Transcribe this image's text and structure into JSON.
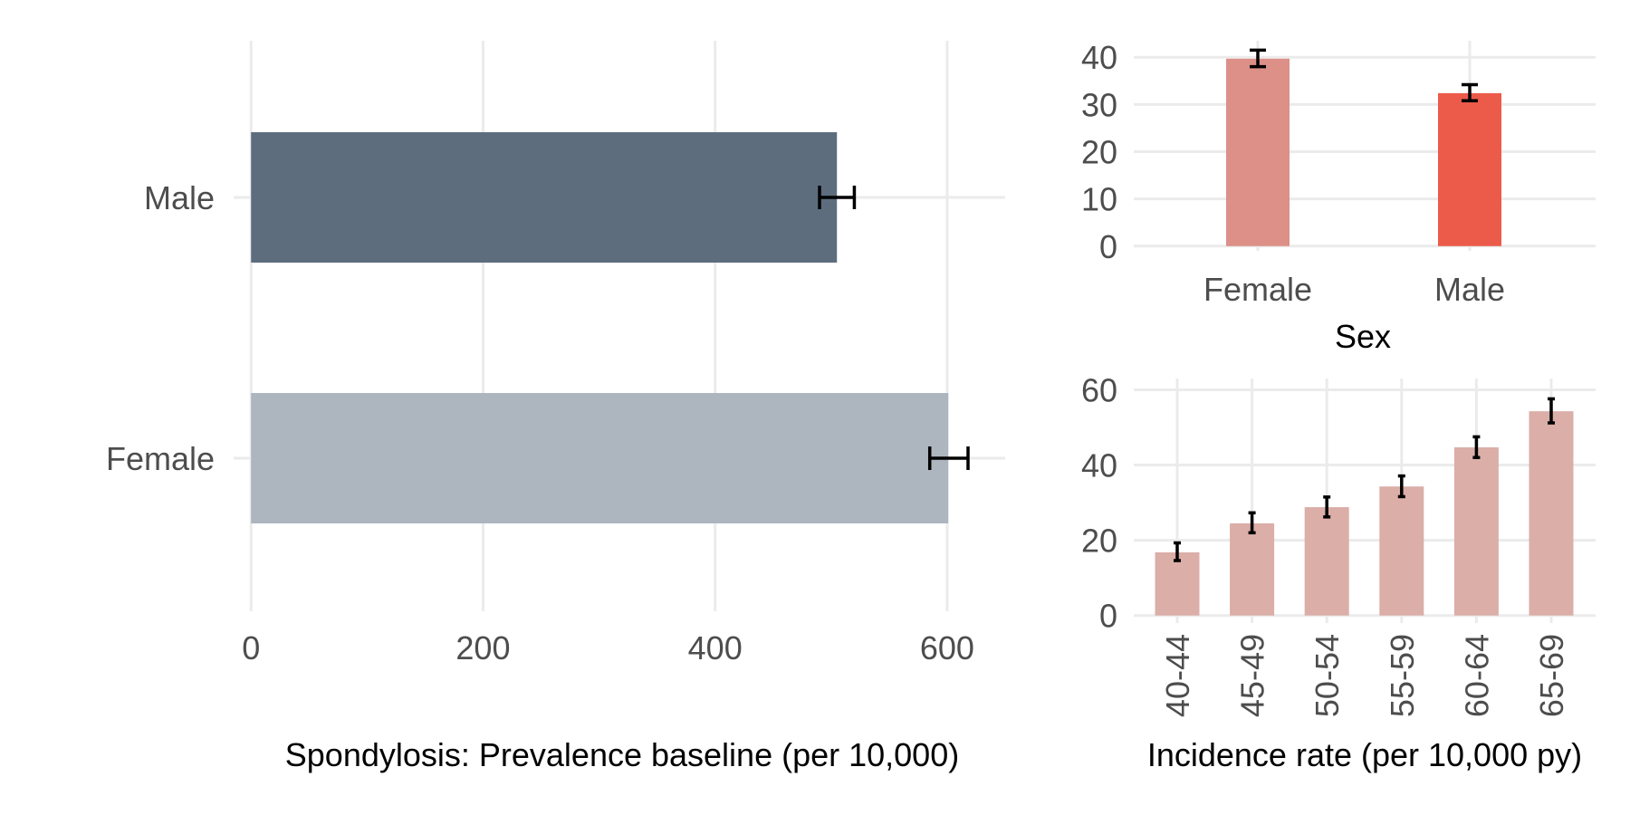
{
  "colors": {
    "male_bar": "#5d6d7e",
    "female_bar": "#adb5bf",
    "sex_female": "#dc9088",
    "sex_male": "#ec5a4a",
    "age_bar": "#dbaea8",
    "grid": "#ebebeb",
    "error_bar": "#000000"
  },
  "chart_data": [
    {
      "type": "bar",
      "orientation": "horizontal",
      "title": "",
      "xlabel": "Spondylosis: Prevalence baseline (per 10,000)",
      "ylabel": "",
      "categories": [
        "Male",
        "Female"
      ],
      "values": [
        505,
        601
      ],
      "error_low": [
        490,
        585
      ],
      "error_high": [
        520,
        618
      ],
      "xlim": [
        -15,
        650
      ],
      "xticks": [
        0,
        200,
        400,
        600
      ],
      "grid": true,
      "legend": "none"
    },
    {
      "type": "bar",
      "title": "",
      "xlabel": "Sex",
      "ylabel": "",
      "categories": [
        "Female",
        "Male"
      ],
      "values": [
        39.7,
        32.4
      ],
      "error_low": [
        38.0,
        30.8
      ],
      "error_high": [
        41.5,
        34.2
      ],
      "ylim": [
        -1,
        43.5
      ],
      "yticks": [
        0,
        10,
        20,
        30,
        40
      ],
      "grid": true,
      "legend": "none"
    },
    {
      "type": "bar",
      "title": "",
      "xlabel": "Incidence rate (per 10,000 py)",
      "ylabel": "",
      "categories": [
        "40-44",
        "45-49",
        "50-54",
        "55-59",
        "60-64",
        "65-69"
      ],
      "values": [
        16.8,
        24.5,
        28.8,
        34.3,
        44.7,
        54.3
      ],
      "error_low": [
        14.6,
        22.0,
        26.2,
        31.6,
        42.0,
        51.2
      ],
      "error_high": [
        19.3,
        27.3,
        31.5,
        37.1,
        47.5,
        57.6
      ],
      "ylim": [
        -2,
        63
      ],
      "yticks": [
        0,
        20,
        40,
        60
      ],
      "grid": true,
      "legend": "none"
    }
  ]
}
